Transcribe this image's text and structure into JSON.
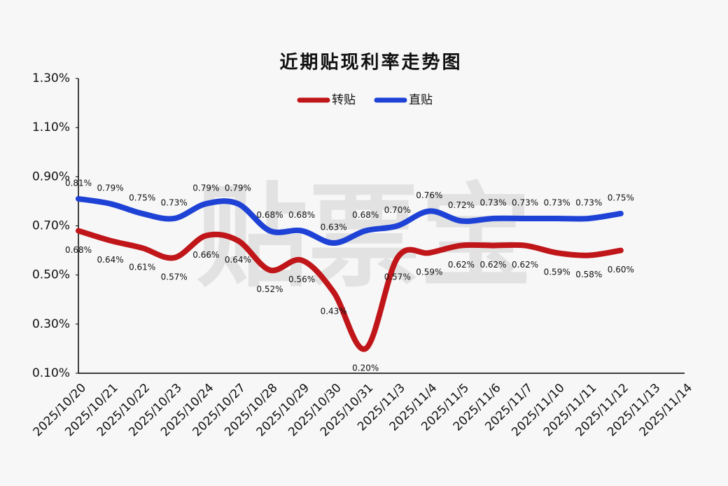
{
  "chart_data": {
    "type": "line",
    "title": "近期贴现利率走势图",
    "watermark": "贴票宝",
    "categories": [
      "2025/10/20",
      "2025/10/21",
      "2025/10/22",
      "2025/10/23",
      "2025/10/24",
      "2025/10/27",
      "2025/10/28",
      "2025/10/29",
      "2025/10/30",
      "2025/10/31",
      "2025/11/3",
      "2025/11/4",
      "2025/11/5",
      "2025/11/6",
      "2025/11/7",
      "2025/11/10",
      "2025/11/11",
      "2025/11/12",
      "2025/11/13",
      "2025/11/14"
    ],
    "series": [
      {
        "name": "转贴",
        "color": "#c0161a",
        "values": [
          0.68,
          0.64,
          0.61,
          0.57,
          0.66,
          0.64,
          0.52,
          0.56,
          0.43,
          0.2,
          0.57,
          0.59,
          0.62,
          0.62,
          0.62,
          0.59,
          0.58,
          0.6,
          null,
          null
        ],
        "value_labels": [
          "0.68%",
          "0.64%",
          "0.61%",
          "0.57%",
          "0.66%",
          "0.64%",
          "0.52%",
          "0.56%",
          "0.43%",
          "0.20%",
          "0.57%",
          "0.59%",
          "0.62%",
          "0.62%",
          "0.62%",
          "0.59%",
          "0.58%",
          "0.60%",
          null,
          null
        ]
      },
      {
        "name": "直贴",
        "color": "#1f42d6",
        "values": [
          0.81,
          0.79,
          0.75,
          0.73,
          0.79,
          0.79,
          0.68,
          0.68,
          0.63,
          0.68,
          0.7,
          0.76,
          0.72,
          0.73,
          0.73,
          0.73,
          0.73,
          0.75,
          null,
          null
        ],
        "value_labels": [
          "0.81%",
          "0.79%",
          "0.75%",
          "0.73%",
          "0.79%",
          "0.79%",
          "0.68%",
          "0.68%",
          "0.63%",
          "0.68%",
          "0.70%",
          "0.76%",
          "0.72%",
          "0.73%",
          "0.73%",
          "0.73%",
          "0.73%",
          "0.75%",
          null,
          null
        ]
      }
    ],
    "ylim": [
      0.1,
      1.3
    ],
    "yticks": [
      {
        "value": 0.1,
        "label": "0.10%"
      },
      {
        "value": 0.3,
        "label": "0.30%"
      },
      {
        "value": 0.5,
        "label": "0.50%"
      },
      {
        "value": 0.7,
        "label": "0.70%"
      },
      {
        "value": 0.9,
        "label": "0.90%"
      },
      {
        "value": 1.1,
        "label": "1.10%"
      },
      {
        "value": 1.3,
        "label": "1.30%"
      }
    ],
    "legend": "top"
  }
}
